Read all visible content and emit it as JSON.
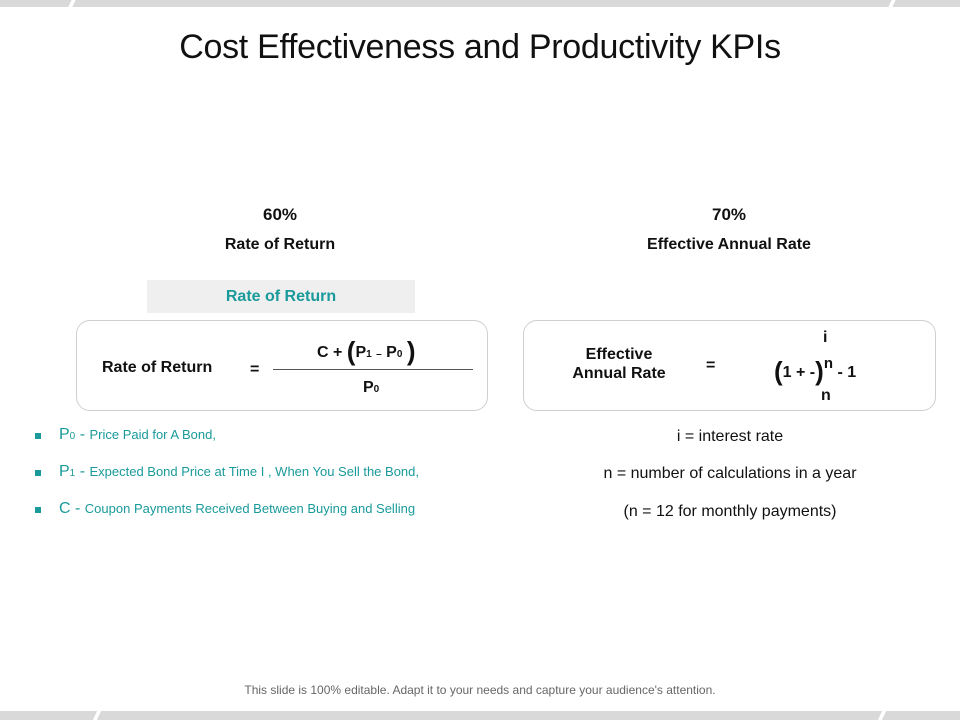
{
  "title": "Cost Effectiveness and Productivity KPIs",
  "kpis": [
    {
      "value": "60%",
      "label": "Rate of Return"
    },
    {
      "value": "70%",
      "label": "Effective Annual Rate"
    }
  ],
  "rate_of_return": {
    "banner": "Rate of Return",
    "formula": {
      "lhs": "Rate of Return",
      "equals": "=",
      "num_prefix": "C +",
      "open_paren": "(",
      "p1": "P",
      "p1_sub": "1",
      "minus": "–",
      "p0": "P",
      "p0_sub": "0",
      "close_paren": ")",
      "den": "P",
      "den_sub": "0"
    }
  },
  "effective_annual_rate": {
    "formula": {
      "lhs_line1": "Effective",
      "lhs_line2": "Annual Rate",
      "equals": "=",
      "top": "i",
      "open_paren": "(",
      "inner": "1 + -",
      "close_paren": ")",
      "exponent": "n",
      "tail": "- 1",
      "bottom": "n"
    }
  },
  "bullets": [
    {
      "key": "P",
      "key_sub": "0",
      "sep": "-",
      "desc": "Price Paid for A Bond,"
    },
    {
      "key": "P",
      "key_sub": "1",
      "sep": "-",
      "desc": "Expected Bond Price at Time I , When You Sell the Bond,"
    },
    {
      "key": "C",
      "key_sub": "",
      "sep": "-",
      "desc": "Coupon Payments Received Between Buying and Selling"
    }
  ],
  "notes": [
    "i = interest rate",
    "n = number of calculations in a year",
    "(n = 12 for monthly payments)"
  ],
  "footer": "This slide is 100% editable. Adapt it to your needs and capture your audience's attention.",
  "colors": {
    "accent": "#1a9a9a",
    "band": "#d9d9d9",
    "banner_bg": "#efefef"
  }
}
